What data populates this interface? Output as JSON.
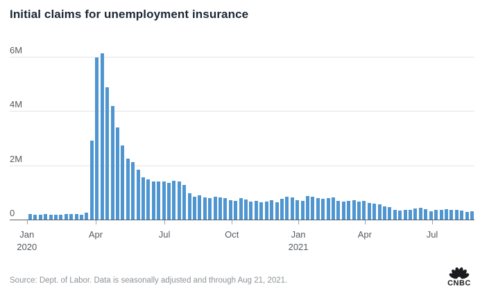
{
  "title": "Initial claims for unemployment insurance",
  "source": "Source: Dept. of Labor. Data is seasonally adjusted and through Aug 21, 2021.",
  "logo": {
    "text": "CNBC"
  },
  "colors": {
    "bar": "#4F96D1",
    "title": "#1C2733",
    "axis_label": "#54595F",
    "gridline": "#E4E4E4",
    "zero_line": "#5B6067",
    "source_text": "#8D9297",
    "logo": "#1B1B1F",
    "background": "#FFFFFF"
  },
  "chart_data": {
    "type": "bar",
    "title": "Initial claims for unemployment insurance",
    "xlabel": "",
    "ylabel": "",
    "unit": "millions of claims per week",
    "x_description": "Weekly data, Jan 2020 through Aug 21, 2021",
    "grid": true,
    "legend": false,
    "ylim": [
      0,
      6.6
    ],
    "y_ticks": [
      {
        "value": 6,
        "label": "6M"
      },
      {
        "value": 4,
        "label": "4M"
      },
      {
        "value": 2,
        "label": "2M"
      },
      {
        "value": 0,
        "label": "0"
      }
    ],
    "x_ticks": [
      {
        "label": "Jan",
        "sublabel": "2020",
        "pos": 0.037
      },
      {
        "label": "Apr",
        "sublabel": "",
        "pos": 0.185
      },
      {
        "label": "Jul",
        "sublabel": "",
        "pos": 0.333
      },
      {
        "label": "Oct",
        "sublabel": "",
        "pos": 0.478
      },
      {
        "label": "Jan",
        "sublabel": "2021",
        "pos": 0.621
      },
      {
        "label": "Apr",
        "sublabel": "",
        "pos": 0.764
      },
      {
        "label": "Jul",
        "sublabel": "",
        "pos": 0.909
      }
    ],
    "values": [
      0.22,
      0.21,
      0.21,
      0.22,
      0.21,
      0.2,
      0.21,
      0.22,
      0.22,
      0.22,
      0.21,
      0.28,
      2.92,
      6.0,
      6.15,
      4.9,
      4.2,
      3.42,
      2.76,
      2.27,
      2.13,
      1.85,
      1.57,
      1.51,
      1.44,
      1.44,
      1.42,
      1.38,
      1.46,
      1.42,
      1.29,
      1.0,
      0.86,
      0.91,
      0.84,
      0.82,
      0.86,
      0.85,
      0.82,
      0.73,
      0.71,
      0.82,
      0.76,
      0.69,
      0.71,
      0.67,
      0.69,
      0.73,
      0.66,
      0.79,
      0.86,
      0.84,
      0.73,
      0.71,
      0.9,
      0.87,
      0.82,
      0.79,
      0.82,
      0.84,
      0.71,
      0.69,
      0.71,
      0.73,
      0.69,
      0.71,
      0.65,
      0.62,
      0.58,
      0.5,
      0.48,
      0.39,
      0.36,
      0.37,
      0.39,
      0.44,
      0.46,
      0.42,
      0.33,
      0.39,
      0.37,
      0.42,
      0.39,
      0.37,
      0.36,
      0.31,
      0.33
    ]
  }
}
